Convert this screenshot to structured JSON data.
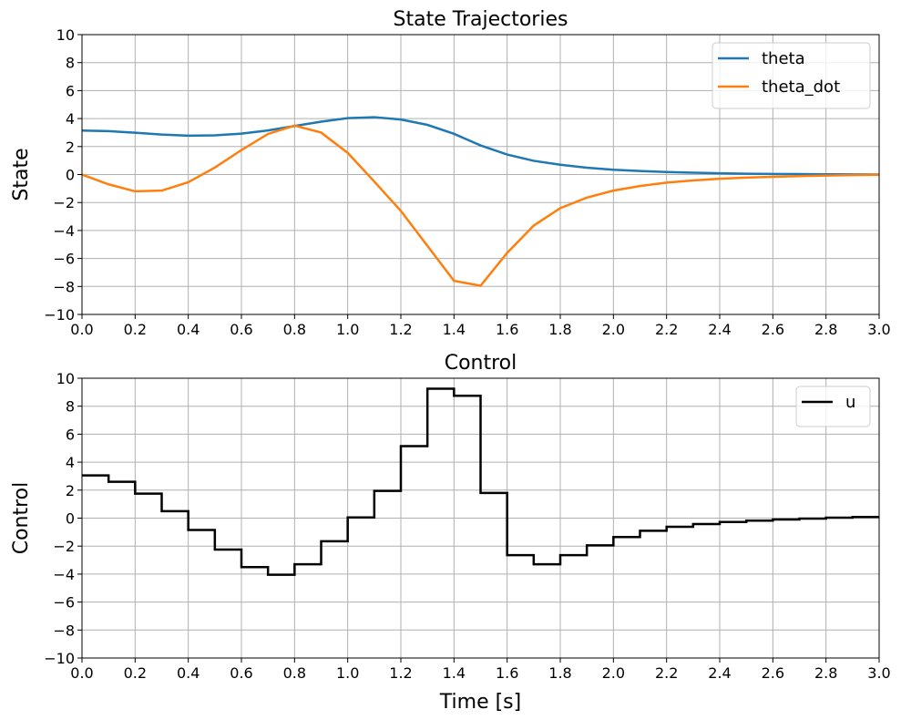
{
  "chart_data": [
    {
      "type": "line",
      "title": "State Trajectories",
      "xlabel": "",
      "ylabel": "State",
      "xlim": [
        0,
        3
      ],
      "ylim": [
        -10,
        10
      ],
      "grid": true,
      "legend_position": "upper-right",
      "xticks": [
        "0.0",
        "0.2",
        "0.4",
        "0.6",
        "0.8",
        "1.0",
        "1.2",
        "1.4",
        "1.6",
        "1.8",
        "2.0",
        "2.2",
        "2.4",
        "2.6",
        "2.8",
        "3.0"
      ],
      "yticks": [
        "10",
        "8",
        "6",
        "4",
        "2",
        "0",
        "−2",
        "−4",
        "−6",
        "−8",
        "−10"
      ],
      "x": [
        0.0,
        0.1,
        0.2,
        0.3,
        0.4,
        0.5,
        0.6,
        0.7,
        0.8,
        0.9,
        1.0,
        1.1,
        1.2,
        1.3,
        1.4,
        1.5,
        1.6,
        1.7,
        1.8,
        1.9,
        2.0,
        2.1,
        2.2,
        2.3,
        2.4,
        2.5,
        2.6,
        2.7,
        2.8,
        2.9,
        3.0
      ],
      "series": [
        {
          "name": "theta",
          "color": "#1f77b4",
          "values": [
            3.14,
            3.1,
            2.99,
            2.86,
            2.78,
            2.8,
            2.92,
            3.15,
            3.47,
            3.78,
            4.03,
            4.1,
            3.93,
            3.55,
            2.91,
            2.08,
            1.43,
            0.98,
            0.7,
            0.49,
            0.34,
            0.25,
            0.18,
            0.13,
            0.09,
            0.06,
            0.04,
            0.03,
            0.02,
            0.01,
            0.0
          ]
        },
        {
          "name": "theta_dot",
          "color": "#ff7f0e",
          "values": [
            0.0,
            -0.7,
            -1.2,
            -1.15,
            -0.55,
            0.5,
            1.75,
            2.9,
            3.5,
            3.0,
            1.55,
            -0.5,
            -2.6,
            -5.1,
            -7.6,
            -7.95,
            -5.6,
            -3.65,
            -2.4,
            -1.65,
            -1.15,
            -0.82,
            -0.58,
            -0.42,
            -0.3,
            -0.22,
            -0.16,
            -0.11,
            -0.07,
            -0.04,
            -0.02
          ]
        }
      ]
    },
    {
      "type": "line",
      "step": "post",
      "title": "Control",
      "xlabel": "Time [s]",
      "ylabel": "Control",
      "xlim": [
        0,
        3
      ],
      "ylim": [
        -10,
        10
      ],
      "grid": true,
      "legend_position": "upper-right",
      "xticks": [
        "0.0",
        "0.2",
        "0.4",
        "0.6",
        "0.8",
        "1.0",
        "1.2",
        "1.4",
        "1.6",
        "1.8",
        "2.0",
        "2.2",
        "2.4",
        "2.6",
        "2.8",
        "3.0"
      ],
      "yticks": [
        "10",
        "8",
        "6",
        "4",
        "2",
        "0",
        "−2",
        "−4",
        "−6",
        "−8",
        "−10"
      ],
      "x": [
        0.0,
        0.1,
        0.2,
        0.3,
        0.4,
        0.5,
        0.6,
        0.7,
        0.8,
        0.9,
        1.0,
        1.1,
        1.2,
        1.3,
        1.4,
        1.5,
        1.6,
        1.7,
        1.8,
        1.9,
        2.0,
        2.1,
        2.2,
        2.3,
        2.4,
        2.5,
        2.6,
        2.7,
        2.8,
        2.9,
        3.0
      ],
      "series": [
        {
          "name": "u",
          "color": "#000000",
          "values": [
            3.05,
            2.6,
            1.75,
            0.5,
            -0.85,
            -2.25,
            -3.5,
            -4.05,
            -3.3,
            -1.65,
            0.05,
            1.95,
            5.15,
            9.25,
            8.75,
            1.8,
            -2.65,
            -3.3,
            -2.65,
            -1.95,
            -1.35,
            -0.9,
            -0.62,
            -0.42,
            -0.28,
            -0.18,
            -0.1,
            -0.03,
            0.03,
            0.08,
            0.1
          ]
        }
      ]
    }
  ]
}
